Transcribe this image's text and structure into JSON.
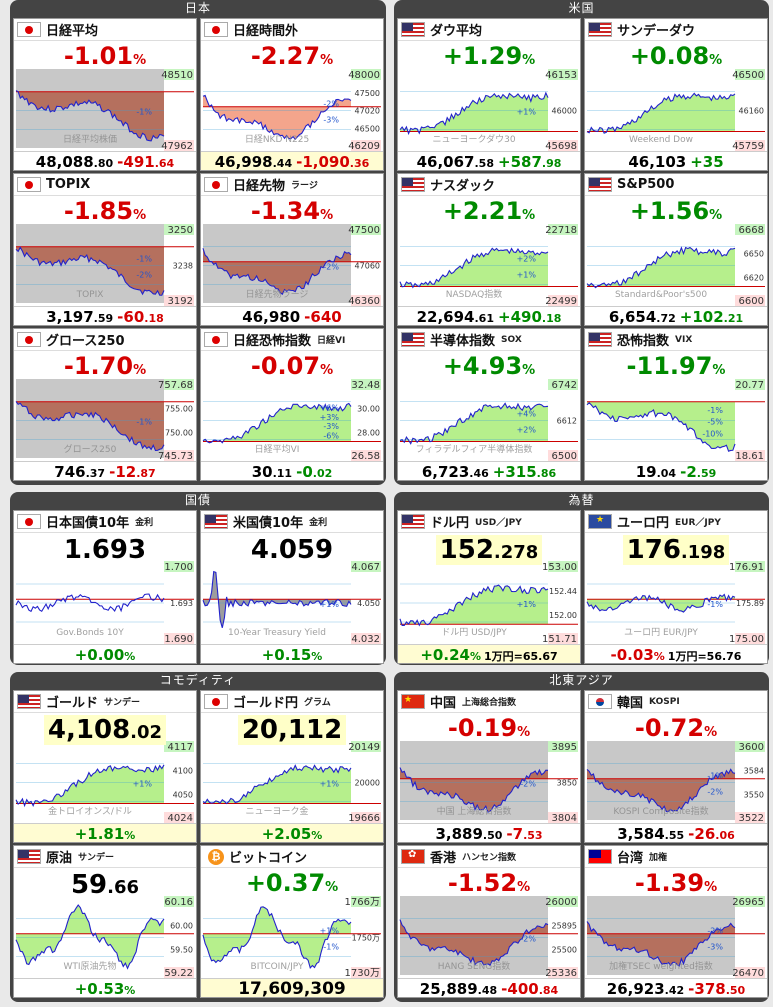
{
  "sections": [
    {
      "title": "日本",
      "cards": [
        {
          "flag": "jp",
          "name": "日経平均",
          "sub": "",
          "mode": "pct",
          "pct": "-1.01",
          "dir": "neg",
          "foot_main": "48,088",
          "foot_frac": ".80",
          "foot_chg": "-491",
          "foot_chg_frac": ".64",
          "watermark": "日経平均株価",
          "labels": [
            "48510",
            "47962"
          ],
          "yl": [
            "-1%"
          ],
          "fill": "red",
          "trend": "down"
        },
        {
          "flag": "jp",
          "name": "日経時間外",
          "sub": "",
          "mode": "pct",
          "pct": "-2.27",
          "dir": "neg",
          "foot_main": "46,998",
          "foot_frac": ".44",
          "foot_chg": "-1,090",
          "foot_chg_frac": ".36",
          "footyel": true,
          "watermark": "日経NKD N225",
          "labels": [
            "48000",
            "47500",
            "47020",
            "46500",
            "46209"
          ],
          "yl": [
            "-2%",
            "-3%"
          ],
          "fill": "salmon",
          "trend": "downup"
        },
        {
          "flag": "jp",
          "name": "TOPIX",
          "sub": "",
          "mode": "pct",
          "pct": "-1.85",
          "dir": "neg",
          "foot_main": "3,197",
          "foot_frac": ".59",
          "foot_chg": "-60",
          "foot_chg_frac": ".18",
          "watermark": "TOPIX",
          "labels": [
            "3250",
            "3238",
            "3192"
          ],
          "yl": [
            "-1%",
            "-2%"
          ],
          "fill": "red",
          "trend": "down"
        },
        {
          "flag": "jp",
          "name": "日経先物",
          "sub": "ラージ",
          "mode": "pct",
          "pct": "-1.34",
          "dir": "neg",
          "foot_main": "46,980",
          "foot_frac": "",
          "foot_chg": "-640",
          "foot_chg_frac": "",
          "watermark": "日経先物ラージ",
          "labels": [
            "47500",
            "47060",
            "46360"
          ],
          "yl": [
            "-2%"
          ],
          "fill": "red",
          "trend": "downup"
        },
        {
          "flag": "jp",
          "name": "グロース250",
          "sub": "",
          "mode": "pct",
          "pct": "-1.70",
          "dir": "neg",
          "foot_main": "746",
          "foot_frac": ".37",
          "foot_chg": "-12",
          "foot_chg_frac": ".87",
          "watermark": "グロース250",
          "labels": [
            "757.68",
            "755.00",
            "750.00",
            "745.73"
          ],
          "yl": [
            "-1%"
          ],
          "fill": "red",
          "trend": "down"
        },
        {
          "flag": "jp",
          "name": "日経恐怖指数",
          "sub": "日経VI",
          "mode": "pct",
          "pct": "-0.07",
          "dir": "neg",
          "foot_main": "30",
          "foot_frac": ".11",
          "foot_chg": "-0",
          "foot_chg_frac": ".02",
          "footchgpos": true,
          "watermark": "日経平均VI",
          "labels": [
            "32.48",
            "30.00",
            "28.00",
            "26.58"
          ],
          "yl": [
            "+6%",
            "+3%",
            "-3%",
            "-6%"
          ],
          "fill": "green",
          "trend": "up"
        }
      ]
    },
    {
      "title": "米国",
      "cards": [
        {
          "flag": "us",
          "name": "ダウ平均",
          "sub": "",
          "mode": "pct",
          "pct": "+1.29",
          "dir": "pos",
          "foot_main": "46,067",
          "foot_frac": ".58",
          "foot_chg": "+587",
          "foot_chg_frac": ".98",
          "watermark": "ニューヨークダウ30",
          "labels": [
            "46153",
            "46000",
            "45698"
          ],
          "yl": [
            "+1%"
          ],
          "fill": "green",
          "trend": "up"
        },
        {
          "flag": "us",
          "name": "サンデーダウ",
          "sub": "",
          "mode": "pct",
          "pct": "+0.08",
          "dir": "pos",
          "foot_main": "46,103",
          "foot_frac": "",
          "foot_chg": "+35",
          "foot_chg_frac": "",
          "watermark": "Weekend Dow",
          "labels": [
            "46500",
            "46160",
            "45759"
          ],
          "yl": [],
          "fill": "mixed",
          "trend": "up"
        },
        {
          "flag": "us",
          "name": "ナスダック",
          "sub": "",
          "mode": "pct",
          "pct": "+2.21",
          "dir": "pos",
          "foot_main": "22,694",
          "foot_frac": ".61",
          "foot_chg": "+490",
          "foot_chg_frac": ".18",
          "watermark": "NASDAQ指数",
          "labels": [
            "22718",
            "22499"
          ],
          "yl": [
            "+2%",
            "+1%"
          ],
          "fill": "green",
          "trend": "up"
        },
        {
          "flag": "us",
          "name": "S&P500",
          "sub": "",
          "mode": "pct",
          "pct": "+1.56",
          "dir": "pos",
          "foot_main": "6,654",
          "foot_frac": ".72",
          "foot_chg": "+102",
          "foot_chg_frac": ".21",
          "watermark": "Standard&Poor's500",
          "labels": [
            "6668",
            "6650",
            "6620",
            "6600"
          ],
          "yl": [],
          "fill": "green",
          "trend": "up"
        },
        {
          "flag": "us",
          "name": "半導体指数",
          "sub": "SOX",
          "mode": "pct",
          "pct": "+4.93",
          "dir": "pos",
          "foot_main": "6,723",
          "foot_frac": ".46",
          "foot_chg": "+315",
          "foot_chg_frac": ".86",
          "watermark": "フィラデルフィア半導体指数",
          "labels": [
            "6742",
            "6612",
            "6500"
          ],
          "yl": [
            "+4%",
            "+2%"
          ],
          "fill": "green",
          "trend": "up"
        },
        {
          "flag": "us",
          "name": "恐怖指数",
          "sub": "VIX",
          "mode": "pct",
          "pct": "-11.97",
          "dir": "pos",
          "foot_main": "19",
          "foot_frac": ".04",
          "foot_chg": "-2",
          "foot_chg_frac": ".59",
          "watermark": "",
          "labels": [
            "20.77",
            "18.61"
          ],
          "yl": [
            "-1%",
            "-5%",
            "-10%"
          ],
          "fill": "green",
          "trend": "down"
        }
      ]
    },
    {
      "title": "国債",
      "cards": [
        {
          "flag": "jp",
          "name": "日本国債10年",
          "sub": "金利",
          "mode": "big",
          "big": "1.693",
          "bigfrac": "",
          "bighl": false,
          "foot_pct": "+0.00",
          "dir": "pos",
          "watermark": "Gov.Bonds 10Y",
          "labels": [
            "1.700",
            "1.693",
            "1.690"
          ],
          "yl": [],
          "fill": "none",
          "trend": "flat"
        },
        {
          "flag": "us",
          "name": "米国債10年",
          "sub": "金利",
          "mode": "big",
          "big": "4.059",
          "bigfrac": "",
          "bighl": false,
          "foot_pct": "+0.15",
          "dir": "pos",
          "watermark": "10-Year Treasury Yield",
          "labels": [
            "4.067",
            "4.050",
            "4.032"
          ],
          "yl": [
            "+1%"
          ],
          "fill": "gray",
          "trend": "spike"
        }
      ]
    },
    {
      "title": "為替",
      "cards": [
        {
          "flag": "us",
          "name": "ドル円",
          "sub": "USD／JPY",
          "mode": "big",
          "big": "152",
          "bigfrac": ".278",
          "bighl": true,
          "foot_pct": "+0.24",
          "dir": "pos",
          "fx": "1万円=65.67",
          "footyel": true,
          "watermark": "ドル円 USD/JPY",
          "labels": [
            "153.00",
            "152.44",
            "152.00",
            "151.71"
          ],
          "yl": [
            "+1%"
          ],
          "fill": "green",
          "trend": "up"
        },
        {
          "flag": "eu",
          "name": "ユーロ円",
          "sub": "EUR／JPY",
          "mode": "big",
          "big": "176",
          "bigfrac": ".198",
          "bighl": true,
          "foot_pct": "-0.03",
          "dir": "neg",
          "fx": "1万円=56.76",
          "watermark": "ユーロ円 EUR/JPY",
          "labels": [
            "176.91",
            "175.89",
            "175.00"
          ],
          "yl": [
            "-1%"
          ],
          "fill": "green",
          "trend": "flat"
        }
      ]
    },
    {
      "title": "コモディティ",
      "cards": [
        {
          "flag": "us",
          "name": "ゴールド",
          "sub": "サンデー",
          "mode": "big",
          "big": "4,108",
          "bigfrac": ".02",
          "bighl": true,
          "foot_pct": "+1.81",
          "dir": "pos",
          "footyel": true,
          "watermark": "金トロイオンス/ドル",
          "labels": [
            "4117",
            "4100",
            "4050",
            "4024"
          ],
          "yl": [
            "+1%"
          ],
          "fill": "green",
          "trend": "up"
        },
        {
          "flag": "jp",
          "name": "ゴールド円",
          "sub": "グラム",
          "mode": "big",
          "big": "20,112",
          "bigfrac": "",
          "bighl": true,
          "foot_pct": "+2.05",
          "dir": "pos",
          "footyel": true,
          "watermark": "ニューヨーク金",
          "labels": [
            "20149",
            "20000",
            "19666"
          ],
          "yl": [
            "+1%"
          ],
          "fill": "green",
          "trend": "up"
        },
        {
          "flag": "us",
          "name": "原油",
          "sub": "サンデー",
          "mode": "big",
          "big": "59",
          "bigfrac": ".66",
          "bighl": false,
          "foot_pct": "+0.53",
          "dir": "pos",
          "watermark": "WTI原油先物",
          "labels": [
            "60.16",
            "60.00",
            "59.50",
            "59.22"
          ],
          "yl": [],
          "fill": "green",
          "trend": "wave"
        },
        {
          "flag": "btc",
          "name": "ビットコイン",
          "sub": "",
          "mode": "pcttop",
          "pct": "+0.37",
          "dir": "pos",
          "foot_big": "17,609,309",
          "footyel": true,
          "watermark": "BITCOIN/JPY",
          "labels": [
            "1766万",
            "1750万",
            "1730万"
          ],
          "yl": [
            "+1%",
            "-1%"
          ],
          "fill": "mixed",
          "trend": "wave"
        }
      ]
    },
    {
      "title": "北東アジア",
      "cards": [
        {
          "flag": "cn",
          "name": "中国",
          "sub": "上海総合指数",
          "mode": "pct",
          "pct": "-0.19",
          "dir": "neg",
          "foot_main": "3,889",
          "foot_frac": ".50",
          "foot_chg": "-7",
          "foot_chg_frac": ".53",
          "watermark": "中国 上海総合指数",
          "labels": [
            "3895",
            "3850",
            "3804"
          ],
          "yl": [
            "-2%"
          ],
          "fill": "red",
          "trend": "downup"
        },
        {
          "flag": "kr",
          "name": "韓国",
          "sub": "KOSPI",
          "mode": "pct",
          "pct": "-0.72",
          "dir": "neg",
          "foot_main": "3,584",
          "foot_frac": ".55",
          "foot_chg": "-26",
          "foot_chg_frac": ".06",
          "watermark": "KOSPI Composite指数",
          "labels": [
            "3600",
            "3584",
            "3550",
            "3522"
          ],
          "yl": [
            "-1%",
            "-2%"
          ],
          "fill": "red",
          "trend": "downup"
        },
        {
          "flag": "hk",
          "name": "香港",
          "sub": "ハンセン指数",
          "mode": "pct",
          "pct": "-1.52",
          "dir": "neg",
          "foot_main": "25,889",
          "foot_frac": ".48",
          "foot_chg": "-400",
          "foot_chg_frac": ".84",
          "watermark": "HANG SENG指数",
          "labels": [
            "26000",
            "25895",
            "25500",
            "25336"
          ],
          "yl": [
            "-2%"
          ],
          "fill": "red",
          "trend": "downup"
        },
        {
          "flag": "tw",
          "name": "台湾",
          "sub": "加権",
          "mode": "pct",
          "pct": "-1.39",
          "dir": "neg",
          "foot_main": "26,923",
          "foot_frac": ".42",
          "foot_chg": "-378",
          "foot_chg_frac": ".50",
          "watermark": "加権TSEC weighted指数",
          "labels": [
            "26965",
            "26470"
          ],
          "yl": [
            "-2%",
            "-3%"
          ],
          "fill": "red",
          "trend": "downup"
        }
      ]
    }
  ]
}
